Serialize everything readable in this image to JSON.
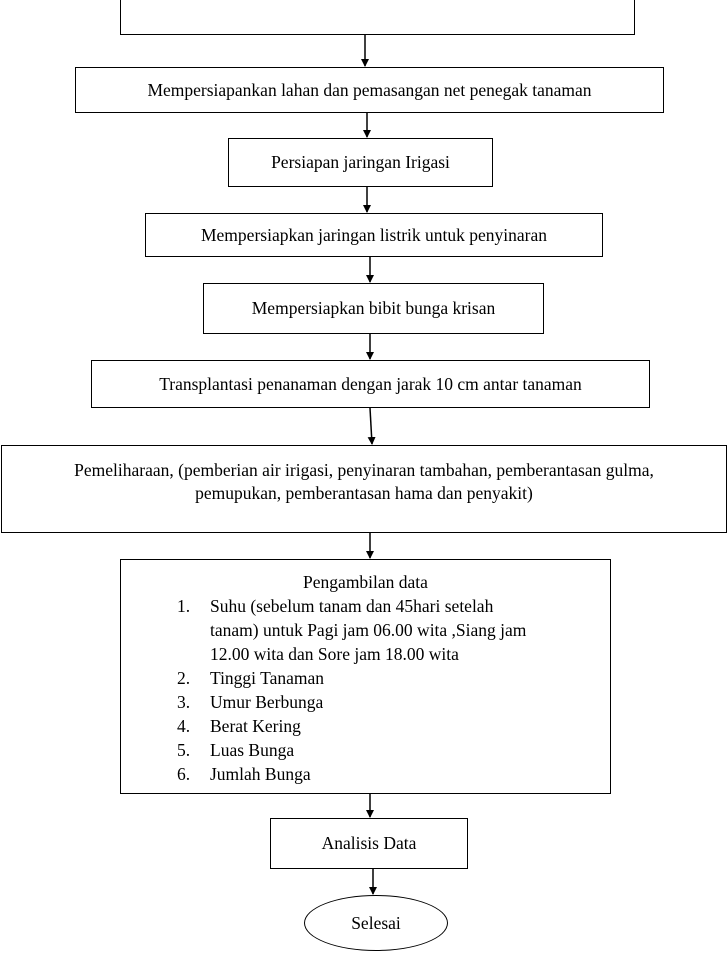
{
  "flowchart": {
    "steps": {
      "lahan": "Mempersiapankan lahan dan pemasangan net penegak tanaman",
      "irigasi": "Persiapan jaringan Irigasi",
      "listrik": "Mempersiapkan jaringan listrik untuk penyinaran",
      "bibit": "Mempersiapkan bibit bunga krisan",
      "transplantasi": "Transplantasi penanaman dengan jarak 10 cm antar tanaman",
      "pemeliharaan": {
        "line1": "Pemeliharaan, (pemberian air irigasi, penyinaran tambahan, pemberantasan gulma,",
        "line2": "pemupukan, pemberantasan hama dan penyakit)"
      },
      "pengambilan": {
        "title": "Pengambilan data",
        "items": [
          {
            "num": "1.",
            "lines": [
              "Suhu (sebelum tanam dan 45hari setelah",
              "tanam)  untuk Pagi jam 06.00 wita ,Siang jam",
              "12.00 wita dan Sore jam 18.00 wita"
            ]
          },
          {
            "num": "2.",
            "lines": [
              "Tinggi Tanaman"
            ]
          },
          {
            "num": "3.",
            "lines": [
              "Umur Berbunga"
            ]
          },
          {
            "num": "4.",
            "lines": [
              "Berat Kering"
            ]
          },
          {
            "num": "5.",
            "lines": [
              "Luas Bunga"
            ]
          },
          {
            "num": "6.",
            "lines": [
              "Jumlah Bunga"
            ]
          }
        ]
      },
      "analisis": "Analisis Data",
      "selesai": "Selesai"
    },
    "colors": {
      "stroke": "#000000",
      "background": "#ffffff"
    }
  }
}
